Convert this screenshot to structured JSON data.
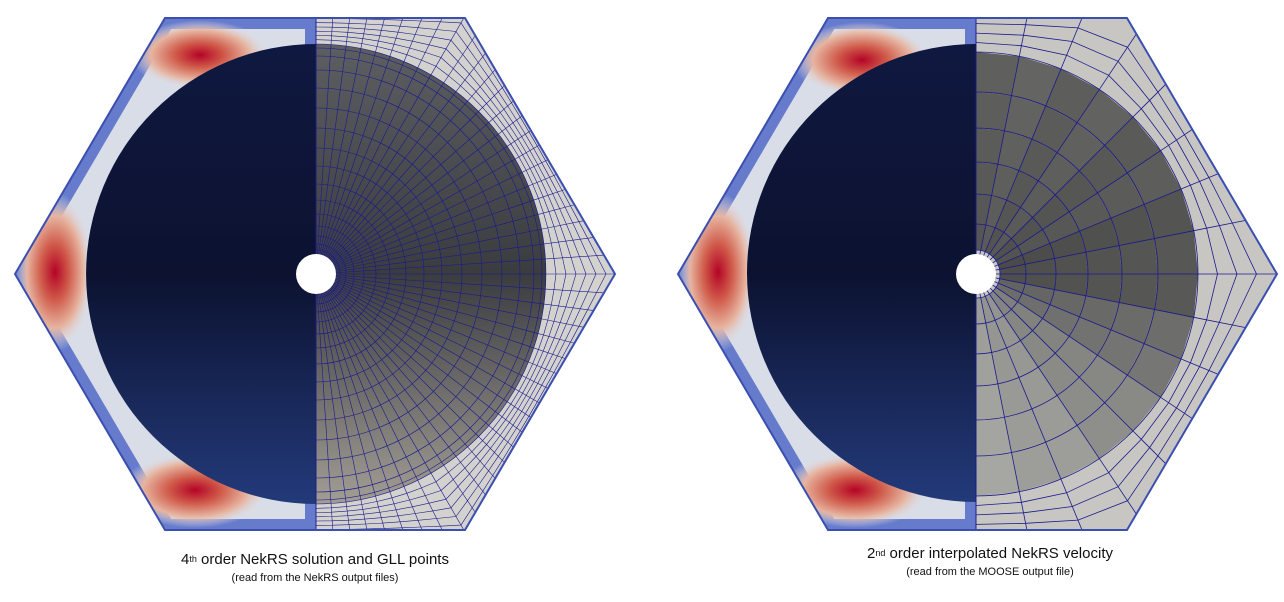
{
  "panels": [
    {
      "caption_prefix": "4",
      "caption_superscript": "th",
      "caption_rest": " order NekRS solution and GLL points",
      "caption_sub": "(read from the NekRS output files)",
      "mesh_style": "fine"
    },
    {
      "caption_prefix": "2",
      "caption_superscript": "nd",
      "caption_rest": " order interpolated NekRS velocity",
      "caption_sub": "(read from the MOOSE output file)",
      "mesh_style": "coarse"
    }
  ],
  "colors": {
    "mesh_lines": "#1a1a8c",
    "hex_outline": "#3b4fb0",
    "hot": "#b40426",
    "cold": "#0b1233"
  }
}
